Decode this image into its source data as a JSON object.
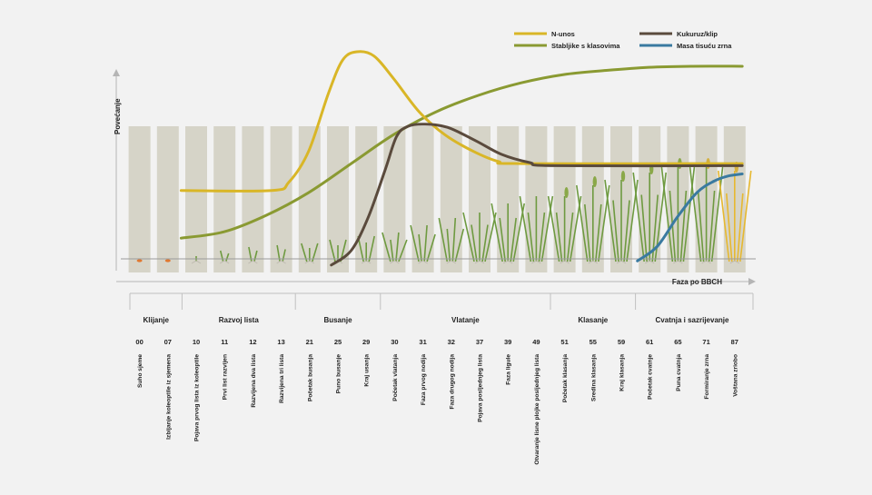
{
  "chart_data": {
    "type": "line",
    "ylabel": "Povećanje",
    "xlabel": "Faza po BBCH",
    "stages": [
      {
        "code": "00",
        "name": "Suho sjeme"
      },
      {
        "code": "07",
        "name": "Izbijanje koleoptile iz sjemena"
      },
      {
        "code": "10",
        "name": "Pojava prvog lista iz koleoptile"
      },
      {
        "code": "11",
        "name": "Prvi list razvijen"
      },
      {
        "code": "12",
        "name": "Razvijena dva lista"
      },
      {
        "code": "13",
        "name": "Razvijena tri lista"
      },
      {
        "code": "21",
        "name": "Početak busanja"
      },
      {
        "code": "25",
        "name": "Puno busanje"
      },
      {
        "code": "29",
        "name": "Kraj usanja"
      },
      {
        "code": "30",
        "name": "Početak vlatanja"
      },
      {
        "code": "31",
        "name": "Faza prvog nodija"
      },
      {
        "code": "32",
        "name": "Faza drugog nodija"
      },
      {
        "code": "37",
        "name": "Pojava posljednjeg lista"
      },
      {
        "code": "39",
        "name": "Faza ligule"
      },
      {
        "code": "49",
        "name": "Otvaranje lisne plojke posljednjeg lista"
      },
      {
        "code": "51",
        "name": "Početak klasanja"
      },
      {
        "code": "55",
        "name": "Sredina klasanja"
      },
      {
        "code": "59",
        "name": "Kraj klasanja"
      },
      {
        "code": "61",
        "name": "Početak cvatnje"
      },
      {
        "code": "65",
        "name": "Puna cvatnja"
      },
      {
        "code": "71",
        "name": "Formiranje zrna"
      },
      {
        "code": "87",
        "name": "Voštana zriobo"
      }
    ],
    "phases": [
      {
        "name": "Klijanje",
        "from": 0,
        "to": 1
      },
      {
        "name": "Razvoj lista",
        "from": 2,
        "to": 5
      },
      {
        "name": "Busanje",
        "from": 6,
        "to": 8
      },
      {
        "name": "Vlatanje",
        "from": 9,
        "to": 14
      },
      {
        "name": "Klasanje",
        "from": 15,
        "to": 17
      },
      {
        "name": "Cvatnja i sazrijevanje",
        "from": 18,
        "to": 21
      }
    ],
    "xlim": [
      0,
      22
    ],
    "ylim": [
      0,
      100
    ],
    "series": [
      {
        "name": "N-unos",
        "color": "#d9b627",
        "points": [
          [
            2,
            33
          ],
          [
            5.2,
            33
          ],
          [
            5.8,
            37
          ],
          [
            6.5,
            52
          ],
          [
            7.2,
            80
          ],
          [
            7.7,
            96
          ],
          [
            8.2,
            100
          ],
          [
            8.8,
            98
          ],
          [
            9.5,
            87
          ],
          [
            10.4,
            71
          ],
          [
            11.3,
            60
          ],
          [
            12.3,
            52
          ],
          [
            13.2,
            47
          ],
          [
            14,
            46
          ],
          [
            21.8,
            46
          ]
        ]
      },
      {
        "name": "Stabljike s klasovima",
        "color": "#8a9a32",
        "points": [
          [
            2,
            10
          ],
          [
            3.5,
            13
          ],
          [
            5,
            21
          ],
          [
            6.5,
            32
          ],
          [
            8,
            46
          ],
          [
            9.5,
            60
          ],
          [
            11,
            71
          ],
          [
            12.5,
            79
          ],
          [
            14,
            85
          ],
          [
            15.5,
            89
          ],
          [
            17,
            91
          ],
          [
            18.5,
            92.5
          ],
          [
            20,
            93
          ],
          [
            21.8,
            93
          ]
        ]
      },
      {
        "name": "Kukuruz/klip",
        "color": "#5a4a3c",
        "points": [
          [
            7.3,
            -3
          ],
          [
            8,
            4
          ],
          [
            8.6,
            20
          ],
          [
            9.2,
            43
          ],
          [
            9.6,
            59
          ],
          [
            10,
            64
          ],
          [
            10.6,
            65
          ],
          [
            11.4,
            63.5
          ],
          [
            12.4,
            57
          ],
          [
            13.3,
            50.5
          ],
          [
            14.3,
            46.5
          ],
          [
            15.2,
            45
          ],
          [
            21.8,
            45
          ]
        ]
      },
      {
        "name": "Masa tisuću zrna",
        "color": "#3a7aa0",
        "points": [
          [
            18.1,
            -1
          ],
          [
            18.8,
            6
          ],
          [
            19.5,
            20
          ],
          [
            20.2,
            32
          ],
          [
            20.8,
            37.5
          ],
          [
            21.3,
            40
          ],
          [
            21.8,
            41
          ]
        ]
      }
    ]
  }
}
